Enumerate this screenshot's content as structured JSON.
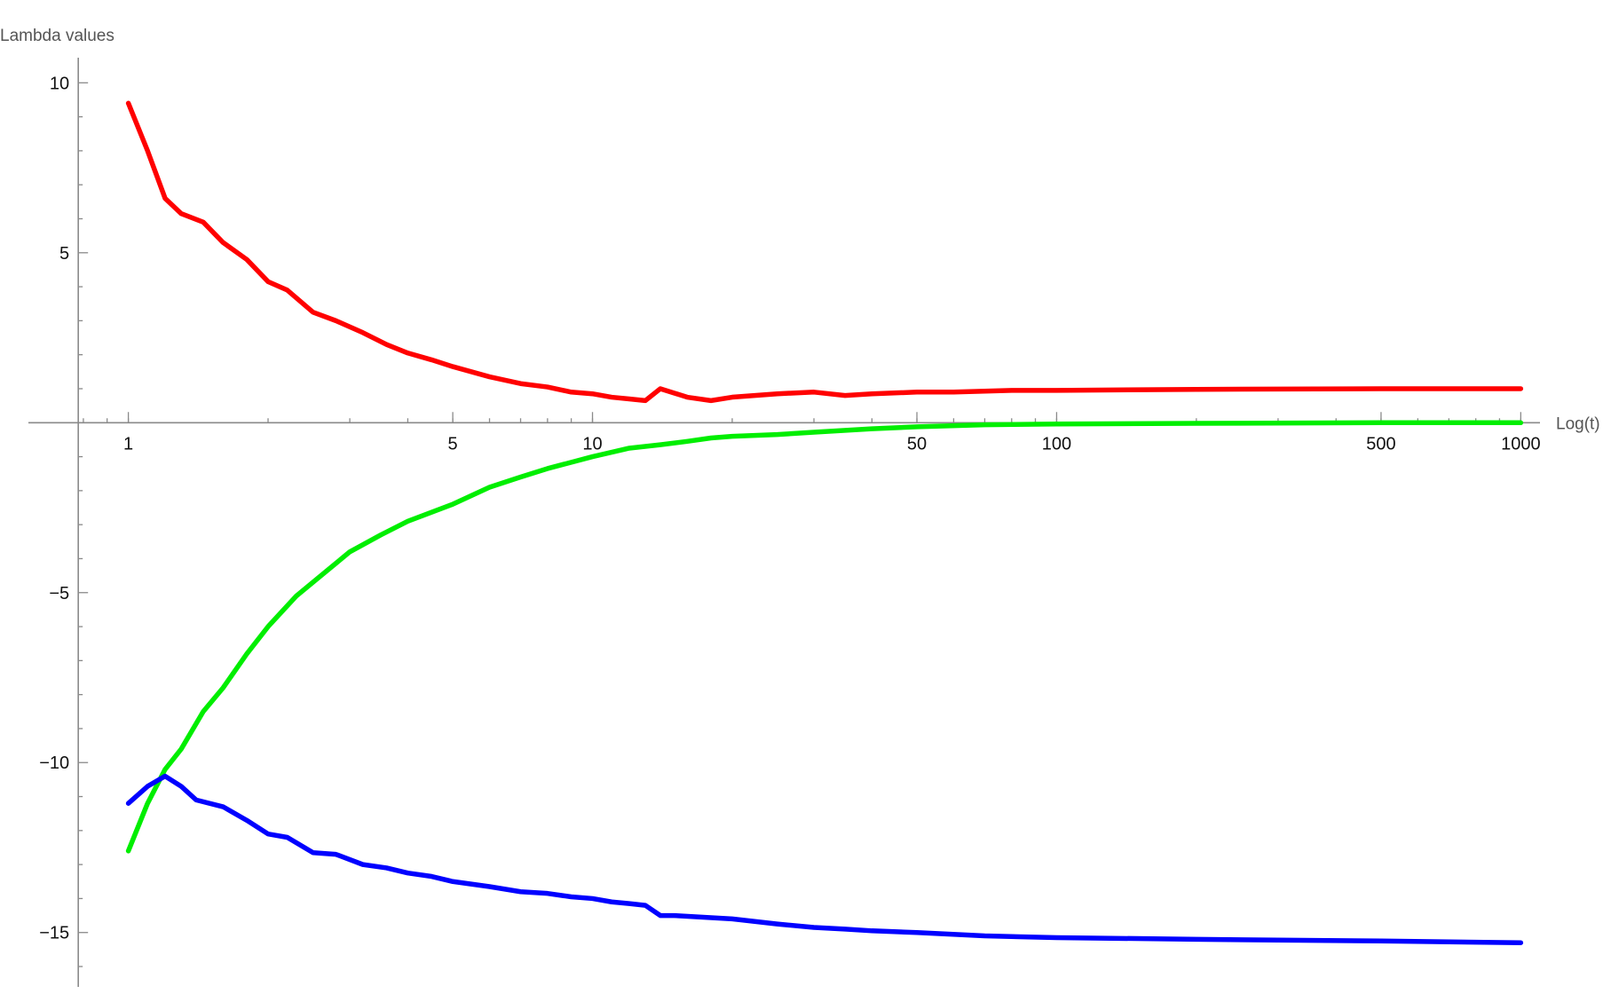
{
  "chart_data": {
    "type": "line",
    "x_scale": "log",
    "xlabel": "Log(t)",
    "ylabel": "Lambda values",
    "xlim": [
      0.72,
      1100
    ],
    "ylim": [
      -16.6,
      11.0
    ],
    "x_ticks": [
      {
        "value": 1,
        "label": "1"
      },
      {
        "value": 5,
        "label": "5"
      },
      {
        "value": 10,
        "label": "10"
      },
      {
        "value": 50,
        "label": "50"
      },
      {
        "value": 100,
        "label": "100"
      },
      {
        "value": 500,
        "label": "500"
      },
      {
        "value": 1000,
        "label": "1000"
      }
    ],
    "y_ticks": [
      {
        "value": 10,
        "label": "10"
      },
      {
        "value": 5,
        "label": "5"
      },
      {
        "value": -5,
        "label": "−5"
      },
      {
        "value": -10,
        "label": "−10"
      },
      {
        "value": -15,
        "label": "−15"
      }
    ],
    "grid": false,
    "legend": "none",
    "series": [
      {
        "color": "#ff0000",
        "x": [
          1,
          1.1,
          1.2,
          1.3,
          1.45,
          1.6,
          1.8,
          2.0,
          2.2,
          2.5,
          2.8,
          3.2,
          3.6,
          4.0,
          4.5,
          5,
          6,
          7,
          8,
          9,
          10,
          11,
          12,
          13,
          14,
          16,
          18,
          20,
          25,
          30,
          35,
          40,
          50,
          60,
          80,
          100,
          200,
          500,
          1000
        ],
        "y": [
          9.4,
          8.0,
          6.6,
          6.15,
          5.9,
          5.3,
          4.8,
          4.15,
          3.9,
          3.25,
          3.0,
          2.65,
          2.3,
          2.05,
          1.85,
          1.65,
          1.35,
          1.15,
          1.05,
          0.9,
          0.85,
          0.75,
          0.7,
          0.65,
          1.0,
          0.75,
          0.65,
          0.75,
          0.85,
          0.9,
          0.8,
          0.85,
          0.9,
          0.9,
          0.95,
          0.95,
          0.98,
          1.0,
          1.0
        ]
      },
      {
        "color": "#00ee00",
        "x": [
          1,
          1.1,
          1.2,
          1.3,
          1.45,
          1.6,
          1.8,
          2.0,
          2.3,
          2.6,
          3.0,
          3.5,
          4.0,
          5,
          6,
          7,
          8,
          10,
          12,
          14,
          16,
          18,
          20,
          25,
          30,
          40,
          50,
          70,
          100,
          200,
          500,
          1000
        ],
        "y": [
          -12.6,
          -11.2,
          -10.2,
          -9.6,
          -8.5,
          -7.8,
          -6.8,
          -6.0,
          -5.1,
          -4.5,
          -3.8,
          -3.3,
          -2.9,
          -2.4,
          -1.9,
          -1.6,
          -1.35,
          -1.0,
          -0.75,
          -0.65,
          -0.55,
          -0.45,
          -0.4,
          -0.35,
          -0.28,
          -0.18,
          -0.12,
          -0.06,
          -0.04,
          -0.02,
          0.0,
          0.0
        ]
      },
      {
        "color": "#0000ff",
        "x": [
          1,
          1.1,
          1.2,
          1.3,
          1.4,
          1.6,
          1.8,
          2.0,
          2.2,
          2.5,
          2.8,
          3.2,
          3.6,
          4.0,
          4.5,
          5,
          6,
          7,
          8,
          9,
          10,
          11,
          12,
          13,
          14,
          15,
          20,
          25,
          30,
          35,
          40,
          50,
          70,
          100,
          200,
          500,
          1000
        ],
        "y": [
          -11.2,
          -10.7,
          -10.4,
          -10.7,
          -11.1,
          -11.3,
          -11.7,
          -12.1,
          -12.2,
          -12.65,
          -12.7,
          -13.0,
          -13.1,
          -13.25,
          -13.35,
          -13.5,
          -13.65,
          -13.8,
          -13.85,
          -13.95,
          -14.0,
          -14.1,
          -14.15,
          -14.2,
          -14.5,
          -14.5,
          -14.6,
          -14.75,
          -14.85,
          -14.9,
          -14.95,
          -15.0,
          -15.1,
          -15.15,
          -15.2,
          -15.25,
          -15.3
        ]
      }
    ]
  }
}
